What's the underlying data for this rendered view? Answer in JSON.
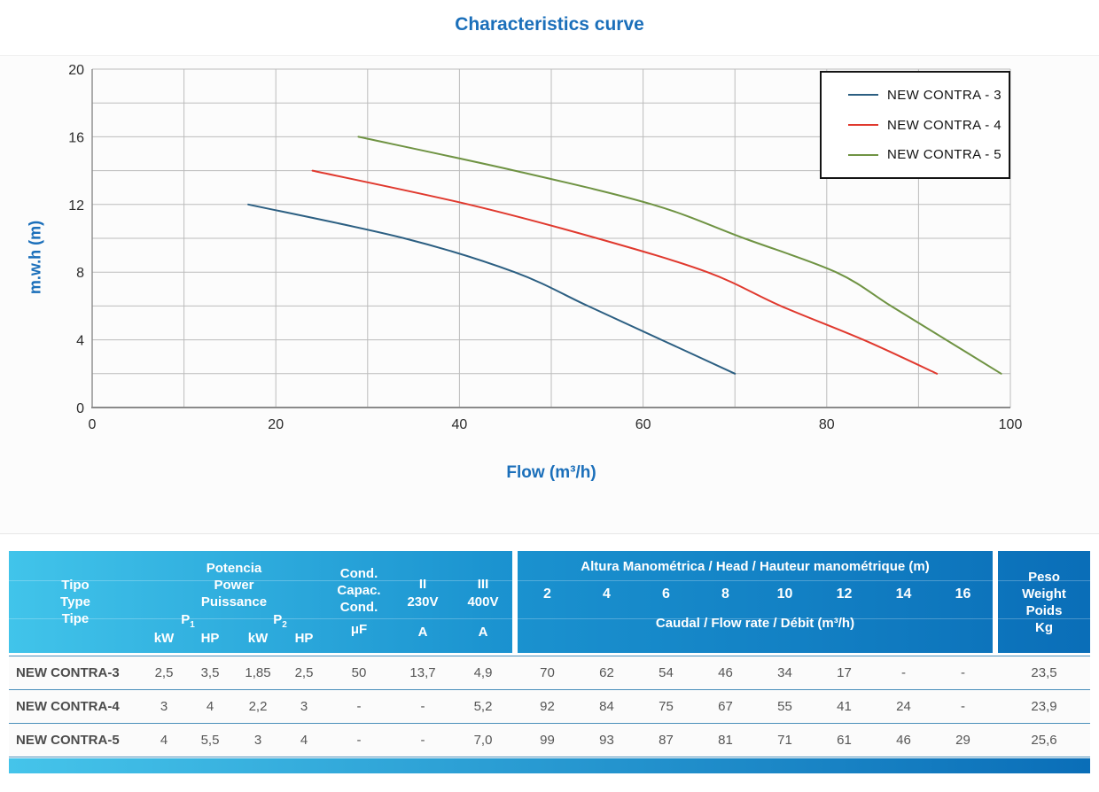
{
  "chart_data": {
    "type": "line",
    "title": "Characteristics curve",
    "xlabel": "Flow (m³/h)",
    "ylabel": "m.w.h (m)",
    "xlim": [
      0,
      100
    ],
    "ylim": [
      0,
      20
    ],
    "x_minor_step": 10,
    "y_minor_step": 2,
    "x_ticks_labeled": [
      0,
      20,
      40,
      60,
      80,
      100
    ],
    "y_ticks_labeled": [
      0,
      4,
      8,
      12,
      16,
      20
    ],
    "grid": true,
    "legend_position": "top-right",
    "series": [
      {
        "name": "NEW CONTRA - 3",
        "color": "#2c5f82",
        "points": [
          [
            17,
            12
          ],
          [
            34,
            10
          ],
          [
            46,
            8
          ],
          [
            54,
            6
          ],
          [
            62,
            4
          ],
          [
            70,
            2
          ]
        ]
      },
      {
        "name": "NEW CONTRA - 4",
        "color": "#e0392e",
        "points": [
          [
            24,
            14
          ],
          [
            41,
            12
          ],
          [
            55,
            10
          ],
          [
            67,
            8
          ],
          [
            75,
            6
          ],
          [
            84,
            4
          ],
          [
            92,
            2
          ]
        ]
      },
      {
        "name": "NEW CONTRA - 5",
        "color": "#6f9343",
        "points": [
          [
            29,
            16
          ],
          [
            46,
            14
          ],
          [
            61,
            12
          ],
          [
            71,
            10
          ],
          [
            81,
            8
          ],
          [
            87,
            6
          ],
          [
            93,
            4
          ],
          [
            99,
            2
          ]
        ]
      }
    ]
  },
  "colors": {
    "title_blue": "#1b6fba",
    "header_gradient_start": "#41c4ea",
    "header_gradient_end": "#0a6eb8",
    "row_separator": "#4a90bb"
  },
  "table": {
    "header": {
      "type_label": [
        "Tipo",
        "Type",
        "Tipe"
      ],
      "power_label": [
        "Potencia",
        "Power",
        "Puissance"
      ],
      "p1": {
        "base": "P",
        "sub": "1"
      },
      "p2": {
        "base": "P",
        "sub": "2"
      },
      "power_units": [
        "kW",
        "HP",
        "kW",
        "HP"
      ],
      "cond_label": [
        "Cond.",
        "Capac.",
        "Cond."
      ],
      "cond_unit": "μF",
      "ii": {
        "line1": "II",
        "line2": "230V",
        "line3": "A"
      },
      "iii": {
        "line1": "III",
        "line2": "400V",
        "line3": "A"
      },
      "head_title": "Altura Manométrica / Head / Hauteur manométrique (m)",
      "head_values": [
        "2",
        "4",
        "6",
        "8",
        "10",
        "12",
        "14",
        "16"
      ],
      "flow_title": "Caudal / Flow rate / Débit (m³/h)",
      "weight_label": [
        "Peso",
        "Weight",
        "Poids",
        "Kg"
      ]
    },
    "rows": [
      {
        "name": "NEW CONTRA-3",
        "p1_kw": "2,5",
        "p1_hp": "3,5",
        "p2_kw": "1,85",
        "p2_hp": "2,5",
        "uf": "50",
        "a230": "13,7",
        "a400": "4,9",
        "flows": [
          "70",
          "62",
          "54",
          "46",
          "34",
          "17",
          "-",
          "-"
        ],
        "weight": "23,5"
      },
      {
        "name": "NEW CONTRA-4",
        "p1_kw": "3",
        "p1_hp": "4",
        "p2_kw": "2,2",
        "p2_hp": "3",
        "uf": "-",
        "a230": "-",
        "a400": "5,2",
        "flows": [
          "92",
          "84",
          "75",
          "67",
          "55",
          "41",
          "24",
          "-"
        ],
        "weight": "23,9"
      },
      {
        "name": "NEW CONTRA-5",
        "p1_kw": "4",
        "p1_hp": "5,5",
        "p2_kw": "3",
        "p2_hp": "4",
        "uf": "-",
        "a230": "-",
        "a400": "7,0",
        "flows": [
          "99",
          "93",
          "87",
          "81",
          "71",
          "61",
          "46",
          "29"
        ],
        "weight": "25,6"
      }
    ]
  }
}
